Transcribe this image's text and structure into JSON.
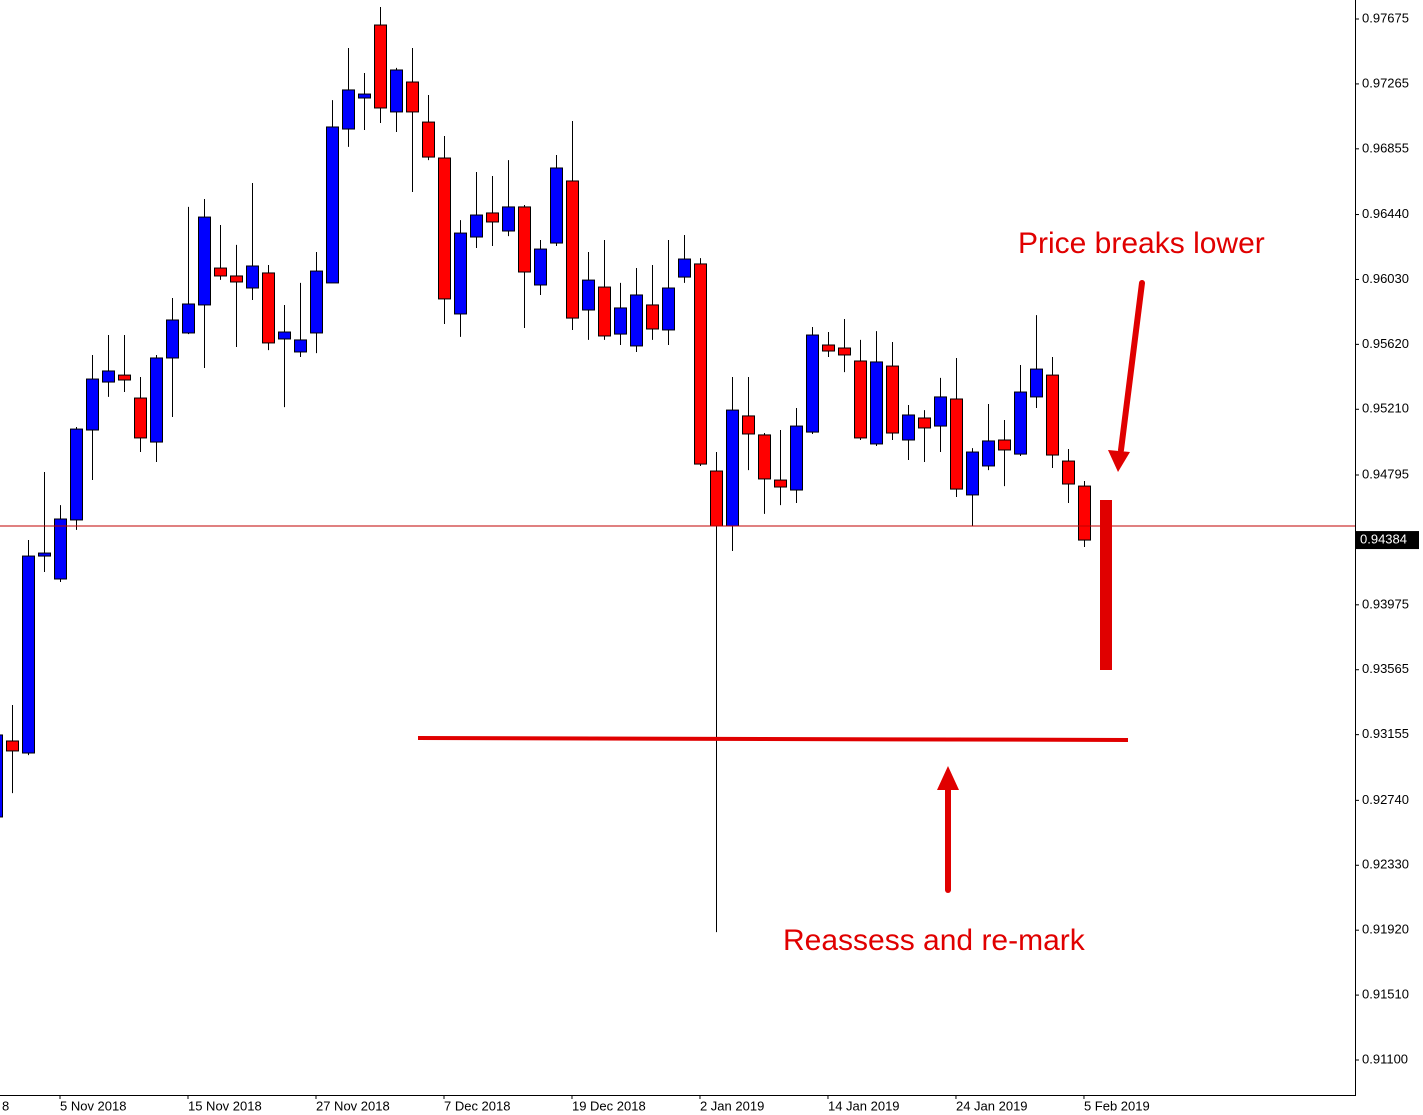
{
  "chart_data": {
    "type": "candlestick",
    "up_color": "#0000ff",
    "down_color": "#ff0000",
    "ylim": [
      0.90879,
      0.97795
    ],
    "xlim": [
      0.25,
      84.94
    ],
    "yticks": [
      0.97675,
      0.97265,
      0.96855,
      {
        "value": 0.9644,
        "label": "0.96440"
      },
      {
        "value": 0.9603,
        "label": "0.96030"
      },
      {
        "value": 0.9562,
        "label": "0.95620"
      },
      {
        "value": 0.9521,
        "label": "0.95210"
      },
      0.94795,
      0.93975,
      0.93565,
      0.93155,
      {
        "value": 0.9274,
        "label": "0.92740"
      },
      {
        "value": 0.9233,
        "label": "0.92330"
      },
      {
        "value": 0.9192,
        "label": "0.91920"
      },
      {
        "value": 0.9151,
        "label": "0.91510"
      },
      {
        "value": 0.911,
        "label": "0.91100"
      }
    ],
    "last_price": 0.94384,
    "xticks": [
      {
        "value": -4,
        "label": "8"
      },
      {
        "value": 4,
        "label": "5 Nov 2018"
      },
      {
        "value": 12,
        "label": "15 Nov 2018"
      },
      {
        "value": 20,
        "label": "27 Nov 2018"
      },
      {
        "value": 28,
        "label": "7 Dec 2018"
      },
      {
        "value": 36,
        "label": "19 Dec 2018"
      },
      {
        "value": 44,
        "label": "2 Jan 2019"
      },
      {
        "value": 52,
        "label": "14 Jan 2019"
      },
      {
        "value": 60,
        "label": "24 Jan 2019"
      },
      {
        "value": 68,
        "label": "5 Feb 2019"
      }
    ],
    "annotations": [
      "Price breaks lower",
      "Reassess and re-mark"
    ],
    "open": [
      0.92635,
      0.93115,
      0.93039,
      0.94283,
      0.94138,
      0.94511,
      0.95079,
      0.95382,
      0.95426,
      0.95281,
      0.95003,
      0.95534,
      0.95692,
      0.95869,
      0.96102,
      0.96052,
      0.95976,
      0.96071,
      0.95654,
      0.95572,
      0.95692,
      0.96008,
      0.9698,
      0.97176,
      0.97637,
      0.97088,
      0.97277,
      0.97024,
      0.96797,
      0.95812,
      0.96298,
      0.9645,
      0.96336,
      0.96488,
      0.95995,
      0.9626,
      0.96652,
      0.95837,
      0.95982,
      0.95685,
      0.9561,
      0.95869,
      0.95711,
      0.96045,
      0.96128,
      0.9482,
      0.94473,
      0.95168,
      0.95048,
      0.94763,
      0.947,
      0.95066,
      0.95616,
      0.95597,
      0.95515,
      0.94991,
      0.95483,
      0.95016,
      0.95155,
      0.95104,
      0.95275,
      0.94669,
      0.94852,
      0.95016,
      0.94927,
      0.95288,
      0.95426,
      0.94883,
      0.94725
    ],
    "high": [
      0.93165,
      0.93342,
      0.94384,
      0.94814,
      0.94605,
      0.95098,
      0.95553,
      0.95679,
      0.95679,
      0.95414,
      0.95553,
      0.95913,
      0.96488,
      0.96538,
      0.96374,
      0.96248,
      0.96639,
      0.96121,
      0.95869,
      0.96008,
      0.96203,
      0.97163,
      0.97492,
      0.97334,
      0.97751,
      0.97366,
      0.97492,
      0.97195,
      0.96936,
      0.96405,
      0.96709,
      0.96683,
      0.96784,
      0.965,
      0.96279,
      0.96816,
      0.97031,
      0.96203,
      0.96279,
      0.96008,
      0.96102,
      0.96121,
      0.96279,
      0.96311,
      0.96165,
      0.9494,
      0.95414,
      0.95414,
      0.9506,
      0.95079,
      0.95218,
      0.9573,
      0.95698,
      0.9578,
      0.95648,
      0.95704,
      0.95635,
      0.95237,
      0.95205,
      0.95408,
      0.95534,
      0.94965,
      0.95243,
      0.95142,
      0.9549,
      0.95805,
      0.9554,
      0.94959,
      0.94757
    ],
    "low": [
      0.92635,
      0.92786,
      0.93026,
      0.94182,
      0.94119,
      0.94448,
      0.94763,
      0.95288,
      0.95319,
      0.9494,
      0.94877,
      0.95161,
      0.95685,
      0.95471,
      0.96027,
      0.95603,
      0.959,
      0.95584,
      0.95224,
      0.9554,
      0.95565,
      0.96008,
      0.96867,
      0.96974,
      0.97018,
      0.96961,
      0.96582,
      0.96784,
      0.95749,
      0.95667,
      0.96229,
      0.96241,
      0.96304,
      0.95723,
      0.95932,
      0.96241,
      0.95711,
      0.95648,
      0.95648,
      0.95616,
      0.95572,
      0.95648,
      0.95616,
      0.96008,
      0.94852,
      0.91908,
      0.94315,
      0.94826,
      0.94549,
      0.94605,
      0.94618,
      0.95054,
      0.9554,
      0.95445,
      0.95016,
      0.94978,
      0.95016,
      0.9489,
      0.94877,
      0.9494,
      0.94656,
      0.94473,
      0.94826,
      0.94725,
      0.94915,
      0.95218,
      0.94839,
      0.94618,
      0.9434
    ],
    "close": [
      0.93153,
      0.93052,
      0.94283,
      0.94302,
      0.94517,
      0.95085,
      0.95401,
      0.95452,
      0.95395,
      0.95029,
      0.95534,
      0.95774,
      0.95875,
      0.96424,
      0.96052,
      0.96014,
      0.96115,
      0.95629,
      0.95698,
      0.95648,
      0.96083,
      0.96993,
      0.97227,
      0.97201,
      0.97113,
      0.97353,
      0.97088,
      0.96803,
      0.95907,
      0.96323,
      0.96437,
      0.96393,
      0.96488,
      0.96077,
      0.96222,
      0.96734,
      0.95786,
      0.96026,
      0.95673,
      0.9585,
      0.95932,
      0.95717,
      0.95976,
      0.96159,
      0.94864,
      0.94473,
      0.95205,
      0.95054,
      0.9477,
      0.94719,
      0.95104,
      0.95679,
      0.95578,
      0.95553,
      0.95029,
      0.95509,
      0.9506,
      0.95174,
      0.95092,
      0.95288,
      0.94706,
      0.9494,
      0.9501,
      0.94953,
      0.95319,
      0.95464,
      0.94921,
      0.94738,
      0.94384
    ]
  }
}
